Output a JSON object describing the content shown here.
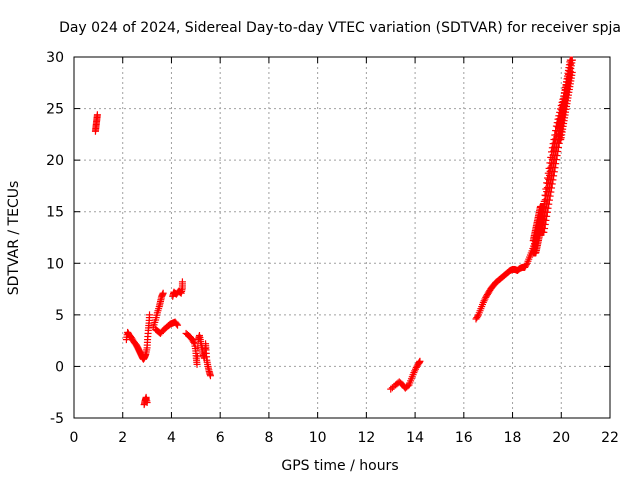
{
  "chart_data": {
    "type": "scatter",
    "title": "Day 024 of 2024, Sidereal Day-to-day VTEC variation (SDTVAR) for receiver spja",
    "xlabel": "GPS time / hours",
    "ylabel": "SDTVAR / TECUs",
    "xlim": [
      0,
      22
    ],
    "ylim": [
      -5,
      30
    ],
    "xticks": [
      0,
      2,
      4,
      6,
      8,
      10,
      12,
      14,
      16,
      18,
      20,
      22
    ],
    "yticks": [
      -5,
      0,
      5,
      10,
      15,
      20,
      25,
      30
    ],
    "grid": true,
    "marker": "+",
    "color": "#ff0000",
    "series": [
      {
        "name": "SDTVAR",
        "points": [
          [
            0.88,
            22.8
          ],
          [
            0.9,
            23.2
          ],
          [
            0.92,
            23.6
          ],
          [
            0.94,
            24.0
          ],
          [
            0.96,
            24.4
          ],
          [
            2.15,
            2.6
          ],
          [
            2.2,
            3.3
          ],
          [
            2.25,
            3.1
          ],
          [
            2.35,
            2.8
          ],
          [
            2.45,
            2.4
          ],
          [
            2.55,
            2.1
          ],
          [
            2.62,
            1.8
          ],
          [
            2.68,
            1.5
          ],
          [
            2.74,
            1.2
          ],
          [
            2.8,
            0.9
          ],
          [
            2.85,
            0.7
          ],
          [
            2.9,
            0.9
          ],
          [
            2.95,
            1.2
          ],
          [
            3.0,
            1.8
          ],
          [
            3.02,
            2.6
          ],
          [
            3.05,
            3.5
          ],
          [
            3.08,
            4.2
          ],
          [
            3.1,
            5.0
          ],
          [
            2.88,
            -3.7
          ],
          [
            2.92,
            -3.3
          ],
          [
            2.96,
            -3.0
          ],
          [
            3.0,
            -3.5
          ],
          [
            3.25,
            3.8
          ],
          [
            3.35,
            4.5
          ],
          [
            3.42,
            5.2
          ],
          [
            3.5,
            5.8
          ],
          [
            3.55,
            6.3
          ],
          [
            3.6,
            6.8
          ],
          [
            3.66,
            7.1
          ],
          [
            3.35,
            3.6
          ],
          [
            3.45,
            3.4
          ],
          [
            3.55,
            3.2
          ],
          [
            3.7,
            3.6
          ],
          [
            3.85,
            3.9
          ],
          [
            3.95,
            4.1
          ],
          [
            4.05,
            4.2
          ],
          [
            4.15,
            4.3
          ],
          [
            4.25,
            4.0
          ],
          [
            4.05,
            6.8
          ],
          [
            4.1,
            7.2
          ],
          [
            4.2,
            7.0
          ],
          [
            4.3,
            7.3
          ],
          [
            4.4,
            7.1
          ],
          [
            4.45,
            7.6
          ],
          [
            4.45,
            8.2
          ],
          [
            4.6,
            3.2
          ],
          [
            4.75,
            2.9
          ],
          [
            4.85,
            2.6
          ],
          [
            4.95,
            2.2
          ],
          [
            5.0,
            1.5
          ],
          [
            5.02,
            0.8
          ],
          [
            5.05,
            0.2
          ],
          [
            5.1,
            2.6
          ],
          [
            5.15,
            3.0
          ],
          [
            5.2,
            2.4
          ],
          [
            5.25,
            1.8
          ],
          [
            5.3,
            1.2
          ],
          [
            5.35,
            0.8
          ],
          [
            5.4,
            2.2
          ],
          [
            5.42,
            1.6
          ],
          [
            5.45,
            0.6
          ],
          [
            5.5,
            0.0
          ],
          [
            5.55,
            -0.5
          ],
          [
            5.6,
            -0.9
          ],
          [
            13.0,
            -2.2
          ],
          [
            13.2,
            -1.8
          ],
          [
            13.35,
            -1.5
          ],
          [
            13.5,
            -1.8
          ],
          [
            13.6,
            -2.1
          ],
          [
            13.75,
            -1.8
          ],
          [
            13.85,
            -1.2
          ],
          [
            13.95,
            -0.6
          ],
          [
            14.05,
            -0.1
          ],
          [
            14.15,
            0.3
          ],
          [
            14.2,
            0.5
          ],
          [
            16.5,
            4.6
          ],
          [
            16.6,
            5.0
          ],
          [
            16.7,
            5.6
          ],
          [
            16.8,
            6.2
          ],
          [
            16.9,
            6.7
          ],
          [
            17.0,
            7.1
          ],
          [
            17.1,
            7.5
          ],
          [
            17.2,
            7.8
          ],
          [
            17.3,
            8.1
          ],
          [
            17.4,
            8.3
          ],
          [
            17.5,
            8.5
          ],
          [
            17.6,
            8.7
          ],
          [
            17.7,
            8.9
          ],
          [
            17.8,
            9.1
          ],
          [
            17.9,
            9.3
          ],
          [
            18.0,
            9.4
          ],
          [
            18.1,
            9.4
          ],
          [
            18.2,
            9.3
          ],
          [
            18.3,
            9.5
          ],
          [
            18.4,
            9.6
          ],
          [
            18.5,
            9.6
          ],
          [
            18.6,
            10.0
          ],
          [
            18.7,
            10.6
          ],
          [
            18.8,
            11.2
          ],
          [
            18.9,
            11.9
          ],
          [
            19.0,
            12.6
          ],
          [
            19.1,
            13.2
          ],
          [
            19.2,
            14.5
          ],
          [
            19.3,
            16.0
          ],
          [
            19.4,
            17.8
          ],
          [
            19.5,
            19.2
          ],
          [
            19.6,
            20.8
          ],
          [
            19.7,
            22.0
          ],
          [
            19.8,
            23.3
          ],
          [
            19.9,
            24.3
          ],
          [
            20.0,
            25.3
          ],
          [
            20.1,
            26.2
          ],
          [
            20.2,
            27.2
          ],
          [
            20.3,
            28.3
          ],
          [
            20.38,
            29.3
          ]
        ],
        "bands": [
          {
            "x": [
              18.85,
              19.25
            ],
            "ylow": 11.0,
            "yhigh": 15.5
          },
          {
            "x": [
              19.2,
              20.0
            ],
            "ylow": 13.0,
            "yhigh": 24.0
          },
          {
            "x": [
              19.9,
              20.45
            ],
            "ylow": 22.0,
            "yhigh": 29.7
          }
        ]
      }
    ]
  }
}
